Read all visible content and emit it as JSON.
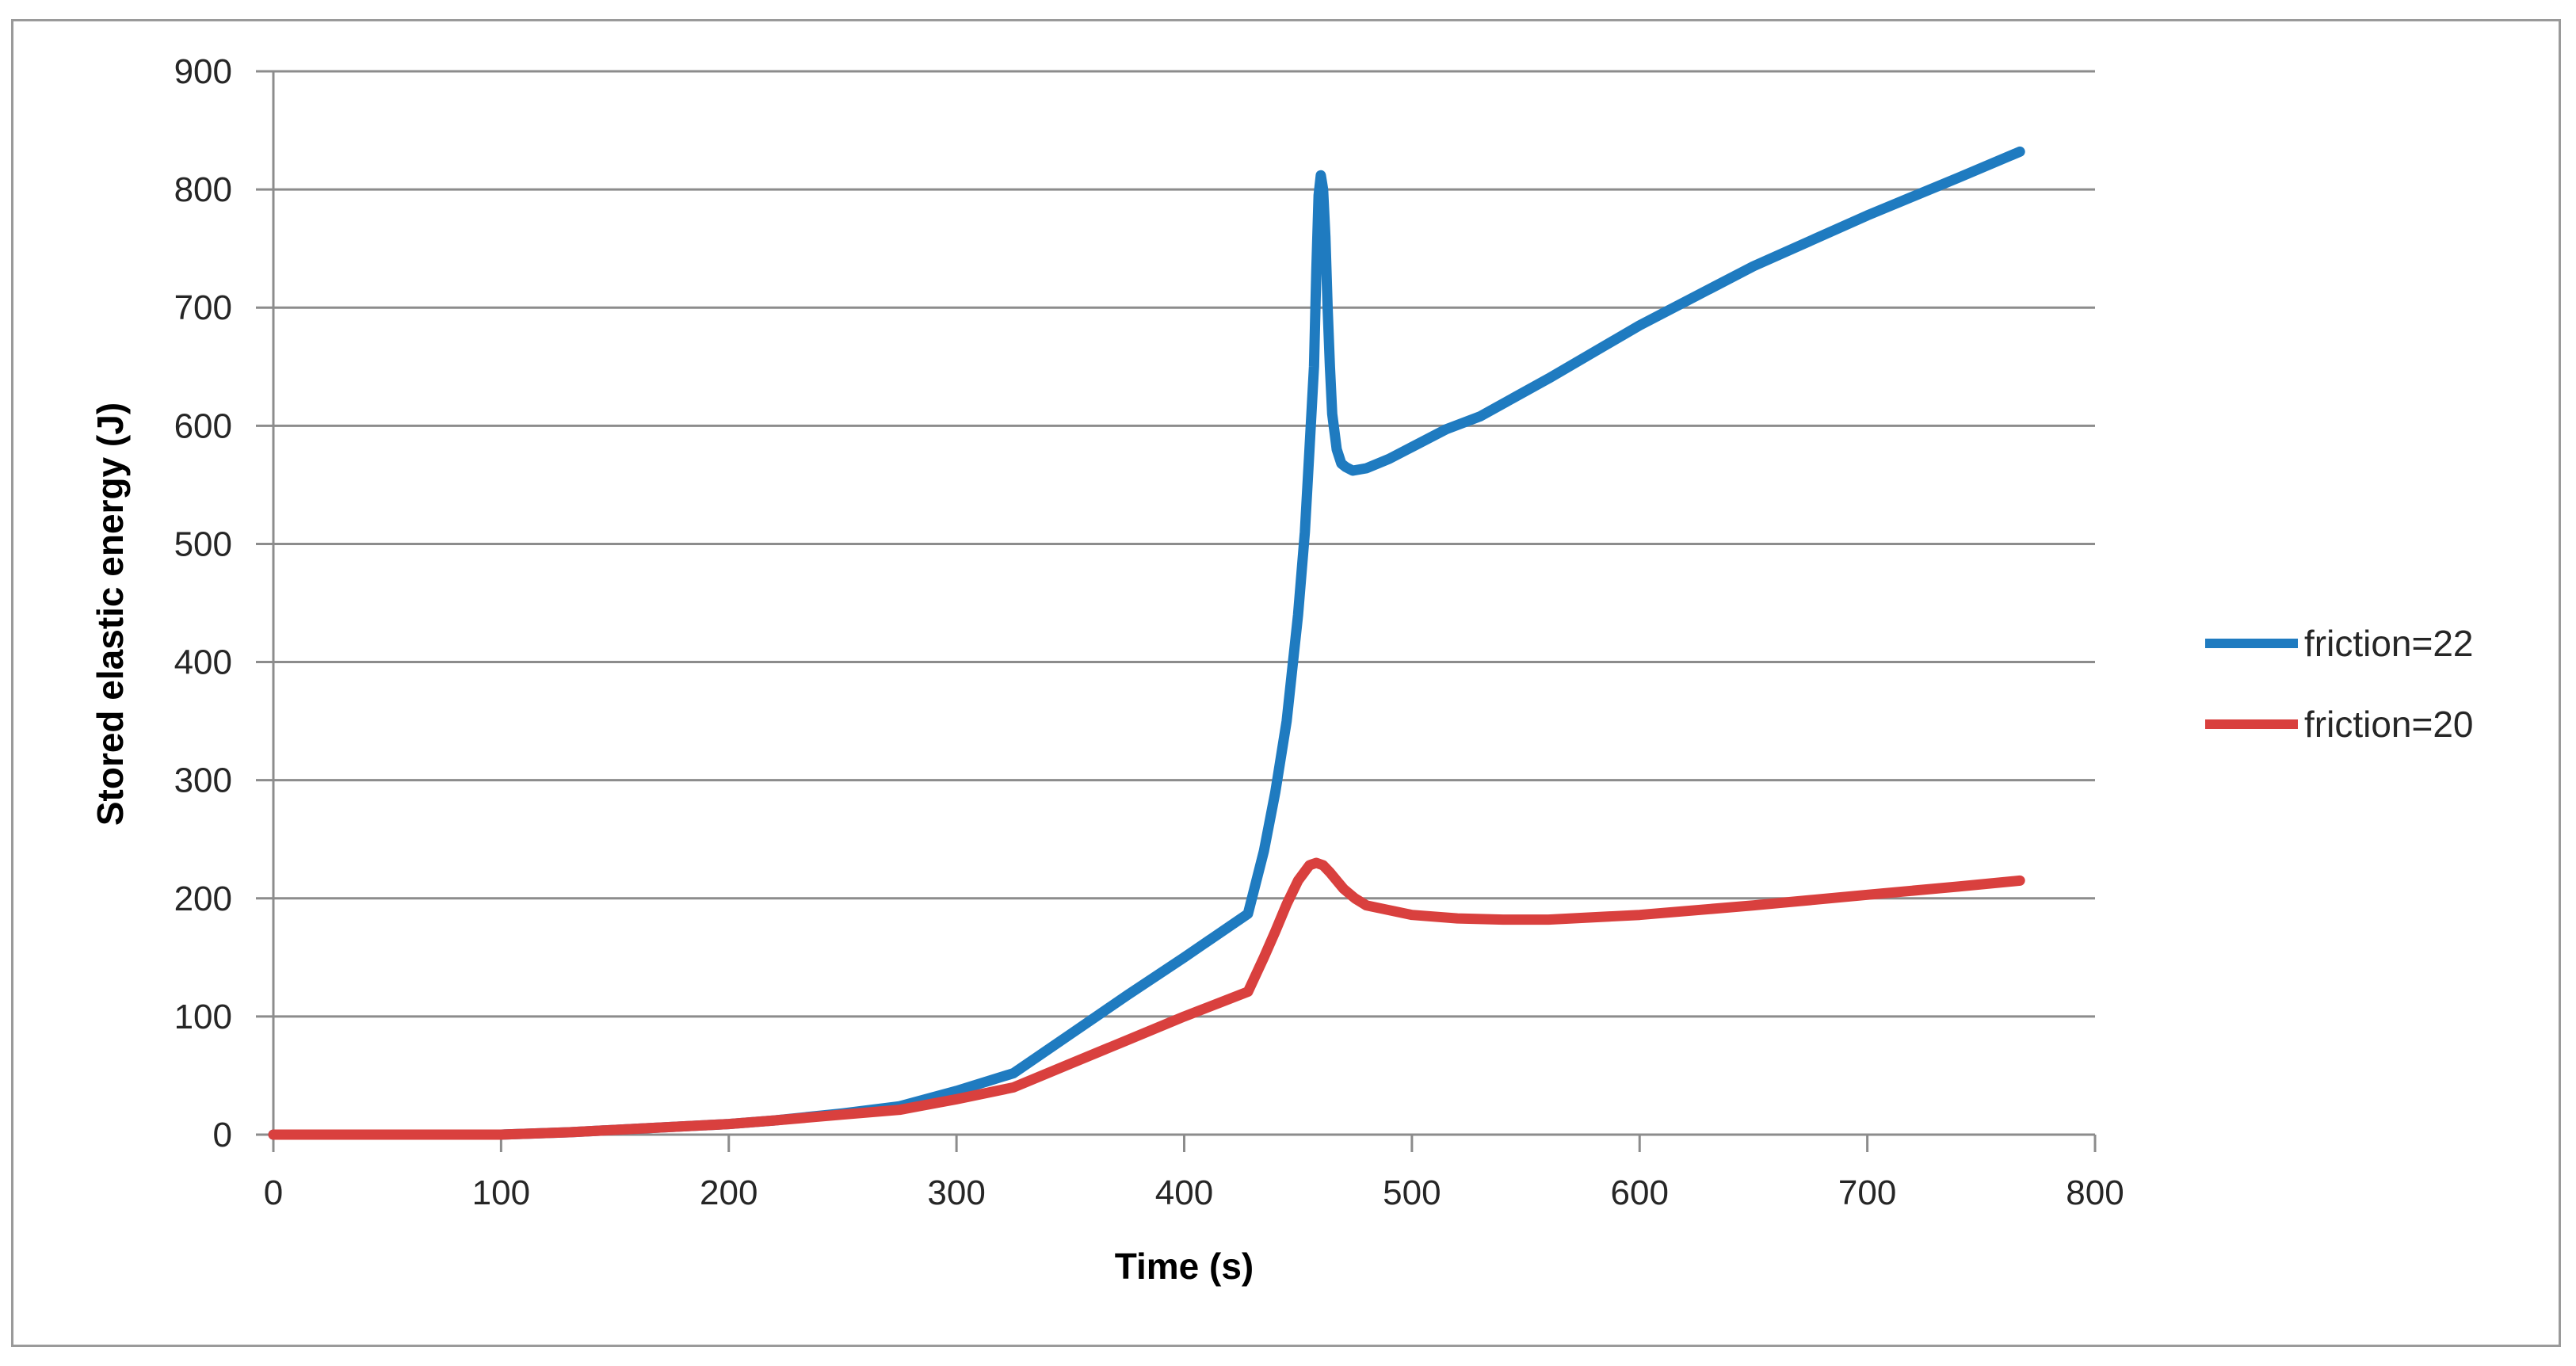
{
  "chart_data": {
    "type": "line",
    "title": "",
    "xlabel": "Time (s)",
    "ylabel": "Stored elastic energy (J)",
    "xlim": [
      0,
      800
    ],
    "ylim": [
      0,
      900
    ],
    "xticks": [
      0,
      100,
      200,
      300,
      400,
      500,
      600,
      700,
      800
    ],
    "yticks": [
      0,
      100,
      200,
      300,
      400,
      500,
      600,
      700,
      800,
      900
    ],
    "x_tick_labels": [
      "0",
      "100",
      "200",
      "300",
      "400",
      "500",
      "600",
      "700",
      "800"
    ],
    "y_tick_labels": [
      "0",
      "100",
      "200",
      "300",
      "400",
      "500",
      "600",
      "700",
      "800",
      "900"
    ],
    "grid": "horizontal",
    "legend_position": "right",
    "series": [
      {
        "name": "friction=22",
        "color": "#1f7bc0",
        "x": [
          0,
          50,
          100,
          130,
          160,
          200,
          220,
          250,
          275,
          300,
          325,
          350,
          375,
          400,
          428,
          435,
          440,
          445,
          450,
          453,
          455,
          457,
          458,
          459,
          460,
          461,
          462,
          463,
          464,
          465,
          467,
          469,
          471,
          474,
          477,
          480,
          490,
          500,
          515,
          530,
          560,
          600,
          650,
          700,
          740,
          767
        ],
        "y": [
          0,
          0,
          0,
          2,
          5,
          9,
          12,
          18,
          24,
          37,
          52,
          85,
          118,
          150,
          187,
          240,
          290,
          350,
          440,
          510,
          580,
          650,
          730,
          795,
          812,
          800,
          760,
          700,
          650,
          610,
          580,
          568,
          565,
          562,
          563,
          564,
          572,
          582,
          597,
          608,
          640,
          685,
          735,
          778,
          810,
          832
        ]
      },
      {
        "name": "friction=20",
        "color": "#d9403e",
        "x": [
          0,
          50,
          100,
          130,
          160,
          200,
          220,
          250,
          275,
          300,
          325,
          350,
          375,
          400,
          428,
          435,
          440,
          445,
          450,
          455,
          458,
          461,
          464,
          467,
          470,
          475,
          480,
          490,
          500,
          520,
          540,
          560,
          600,
          650,
          700,
          740,
          767
        ],
        "y": [
          0,
          0,
          0,
          2,
          5,
          9,
          12,
          17,
          21,
          30,
          40,
          60,
          80,
          100,
          121,
          150,
          172,
          195,
          215,
          228,
          230,
          228,
          222,
          215,
          208,
          200,
          194,
          190,
          186,
          183,
          182,
          182,
          186,
          194,
          203,
          210,
          215
        ]
      }
    ]
  }
}
